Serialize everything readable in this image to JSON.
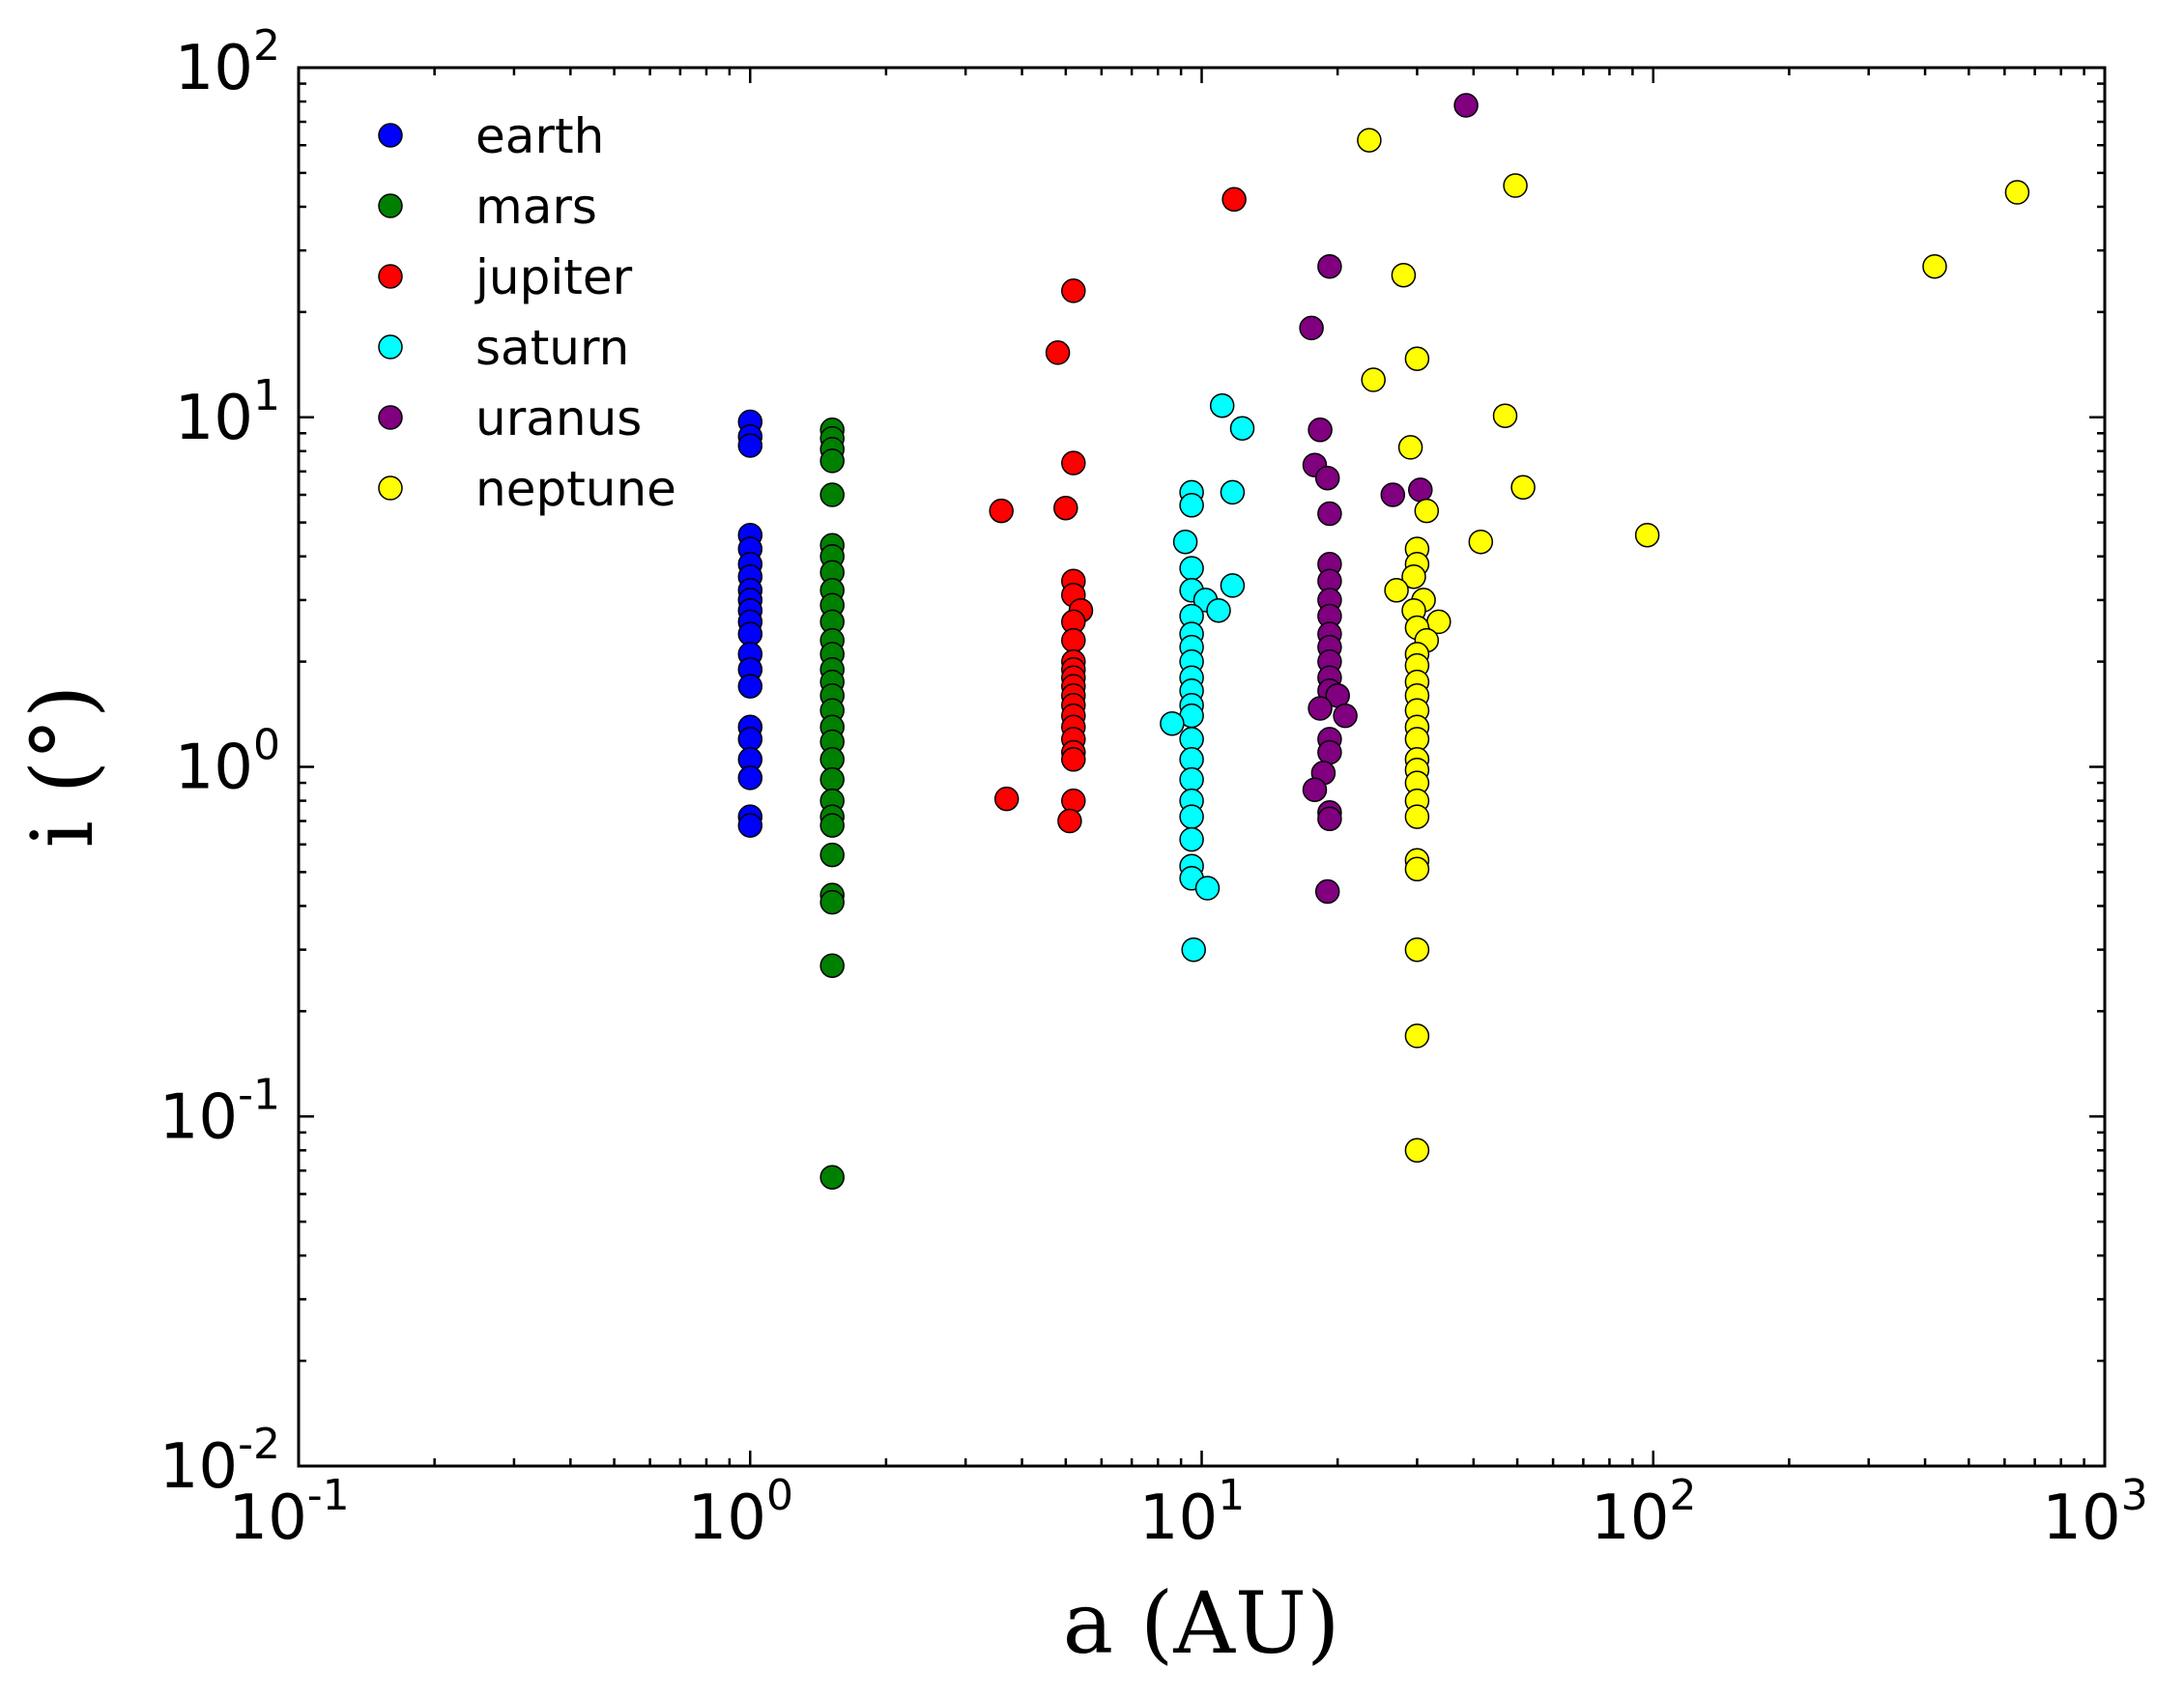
{
  "chart_data": {
    "type": "scatter",
    "title": "",
    "xlabel": "a (AU)",
    "ylabel": "i (°)",
    "xscale": "log",
    "yscale": "log",
    "xlim": [
      0.1,
      1000
    ],
    "ylim": [
      0.01,
      100
    ],
    "x_ticks": [
      {
        "base": "10",
        "exp": "-1",
        "value": 0.1
      },
      {
        "base": "10",
        "exp": "0",
        "value": 1
      },
      {
        "base": "10",
        "exp": "1",
        "value": 10
      },
      {
        "base": "10",
        "exp": "2",
        "value": 100
      },
      {
        "base": "10",
        "exp": "3",
        "value": 1000
      }
    ],
    "y_ticks": [
      {
        "base": "10",
        "exp": "-2",
        "value": 0.01
      },
      {
        "base": "10",
        "exp": "-1",
        "value": 0.1
      },
      {
        "base": "10",
        "exp": "0",
        "value": 1
      },
      {
        "base": "10",
        "exp": "1",
        "value": 10
      },
      {
        "base": "10",
        "exp": "2",
        "value": 100
      }
    ],
    "legend_position": "top-left",
    "series": [
      {
        "name": "earth",
        "color": "#0000ff",
        "points": [
          [
            1.0,
            9.7
          ],
          [
            1.0,
            8.8
          ],
          [
            1.0,
            8.3
          ],
          [
            1.0,
            4.6
          ],
          [
            1.0,
            4.2
          ],
          [
            1.0,
            3.8
          ],
          [
            1.0,
            3.5
          ],
          [
            1.0,
            3.2
          ],
          [
            1.0,
            3.0
          ],
          [
            1.0,
            2.8
          ],
          [
            1.0,
            2.6
          ],
          [
            1.0,
            2.4
          ],
          [
            1.0,
            2.1
          ],
          [
            1.0,
            1.9
          ],
          [
            1.0,
            1.7
          ],
          [
            1.0,
            1.3
          ],
          [
            1.0,
            1.2
          ],
          [
            1.0,
            1.05
          ],
          [
            1.0,
            0.93
          ],
          [
            1.0,
            0.72
          ],
          [
            1.0,
            0.68
          ]
        ]
      },
      {
        "name": "mars",
        "color": "#008000",
        "points": [
          [
            1.52,
            9.2
          ],
          [
            1.52,
            8.7
          ],
          [
            1.52,
            8.1
          ],
          [
            1.52,
            7.5
          ],
          [
            1.52,
            6.0
          ],
          [
            1.52,
            4.3
          ],
          [
            1.52,
            4.0
          ],
          [
            1.52,
            3.6
          ],
          [
            1.52,
            3.2
          ],
          [
            1.52,
            2.9
          ],
          [
            1.52,
            2.6
          ],
          [
            1.52,
            2.3
          ],
          [
            1.52,
            2.1
          ],
          [
            1.52,
            1.9
          ],
          [
            1.52,
            1.75
          ],
          [
            1.52,
            1.6
          ],
          [
            1.52,
            1.45
          ],
          [
            1.52,
            1.3
          ],
          [
            1.52,
            1.18
          ],
          [
            1.52,
            1.05
          ],
          [
            1.52,
            0.92
          ],
          [
            1.52,
            0.8
          ],
          [
            1.52,
            0.72
          ],
          [
            1.52,
            0.68
          ],
          [
            1.52,
            0.56
          ],
          [
            1.52,
            0.43
          ],
          [
            1.52,
            0.41
          ],
          [
            1.52,
            0.27
          ],
          [
            1.52,
            0.067
          ]
        ]
      },
      {
        "name": "jupiter",
        "color": "#ff0000",
        "points": [
          [
            11.8,
            42.0
          ],
          [
            5.2,
            23.0
          ],
          [
            4.8,
            15.3
          ],
          [
            5.2,
            7.4
          ],
          [
            3.6,
            5.4
          ],
          [
            5.0,
            5.5
          ],
          [
            5.2,
            3.4
          ],
          [
            5.2,
            3.1
          ],
          [
            5.4,
            2.8
          ],
          [
            5.2,
            2.6
          ],
          [
            5.2,
            2.3
          ],
          [
            5.2,
            2.0
          ],
          [
            5.2,
            1.9
          ],
          [
            5.2,
            1.8
          ],
          [
            5.2,
            1.7
          ],
          [
            5.2,
            1.6
          ],
          [
            5.2,
            1.5
          ],
          [
            5.2,
            1.4
          ],
          [
            5.2,
            1.3
          ],
          [
            5.2,
            1.2
          ],
          [
            5.2,
            1.1
          ],
          [
            5.2,
            1.05
          ],
          [
            3.7,
            0.81
          ],
          [
            5.2,
            0.8
          ],
          [
            5.1,
            0.7
          ]
        ]
      },
      {
        "name": "saturn",
        "color": "#00ffff",
        "points": [
          [
            11.1,
            10.8
          ],
          [
            12.3,
            9.3
          ],
          [
            9.5,
            6.1
          ],
          [
            11.7,
            6.1
          ],
          [
            9.5,
            5.6
          ],
          [
            9.2,
            4.4
          ],
          [
            9.5,
            3.7
          ],
          [
            11.7,
            3.3
          ],
          [
            9.5,
            3.2
          ],
          [
            10.2,
            3.0
          ],
          [
            10.9,
            2.8
          ],
          [
            9.5,
            2.7
          ],
          [
            9.5,
            2.4
          ],
          [
            9.5,
            2.2
          ],
          [
            9.5,
            2.0
          ],
          [
            9.5,
            1.8
          ],
          [
            9.5,
            1.65
          ],
          [
            9.5,
            1.5
          ],
          [
            9.5,
            1.4
          ],
          [
            8.6,
            1.33
          ],
          [
            9.5,
            1.2
          ],
          [
            9.5,
            1.05
          ],
          [
            9.5,
            0.92
          ],
          [
            9.5,
            0.8
          ],
          [
            9.5,
            0.72
          ],
          [
            9.5,
            0.62
          ],
          [
            9.5,
            0.52
          ],
          [
            9.5,
            0.48
          ],
          [
            10.3,
            0.45
          ],
          [
            9.6,
            0.3
          ]
        ]
      },
      {
        "name": "uranus",
        "color": "#800080",
        "points": [
          [
            38.5,
            78.0
          ],
          [
            19.2,
            27.0
          ],
          [
            17.5,
            18.0
          ],
          [
            18.3,
            9.2
          ],
          [
            17.8,
            7.3
          ],
          [
            19.0,
            6.7
          ],
          [
            30.5,
            6.2
          ],
          [
            26.5,
            6.0
          ],
          [
            19.2,
            5.3
          ],
          [
            19.2,
            3.8
          ],
          [
            19.2,
            3.4
          ],
          [
            19.2,
            3.0
          ],
          [
            19.2,
            2.7
          ],
          [
            19.2,
            2.4
          ],
          [
            19.2,
            2.2
          ],
          [
            19.2,
            2.0
          ],
          [
            19.2,
            1.8
          ],
          [
            19.2,
            1.65
          ],
          [
            20.0,
            1.6
          ],
          [
            18.3,
            1.47
          ],
          [
            20.8,
            1.4
          ],
          [
            19.2,
            1.2
          ],
          [
            19.2,
            1.1
          ],
          [
            18.6,
            0.96
          ],
          [
            17.8,
            0.86
          ],
          [
            19.2,
            0.74
          ],
          [
            19.2,
            0.71
          ],
          [
            19.0,
            0.44
          ]
        ]
      },
      {
        "name": "neptune",
        "color": "#ffff00",
        "points": [
          [
            23.5,
            62.0
          ],
          [
            49.5,
            46.0
          ],
          [
            640.0,
            44.0
          ],
          [
            420.0,
            27.0
          ],
          [
            28.0,
            25.5
          ],
          [
            30.0,
            14.7
          ],
          [
            24.0,
            12.8
          ],
          [
            47.0,
            10.1
          ],
          [
            29.0,
            8.2
          ],
          [
            51.5,
            6.3
          ],
          [
            31.5,
            5.4
          ],
          [
            97.0,
            4.6
          ],
          [
            41.5,
            4.4
          ],
          [
            30.0,
            4.2
          ],
          [
            30.0,
            3.8
          ],
          [
            29.5,
            3.5
          ],
          [
            27.0,
            3.2
          ],
          [
            31.0,
            3.0
          ],
          [
            29.5,
            2.8
          ],
          [
            33.5,
            2.6
          ],
          [
            30.0,
            2.5
          ],
          [
            31.5,
            2.3
          ],
          [
            30.0,
            2.1
          ],
          [
            30.0,
            1.95
          ],
          [
            30.0,
            1.75
          ],
          [
            30.0,
            1.6
          ],
          [
            30.0,
            1.45
          ],
          [
            30.0,
            1.3
          ],
          [
            30.0,
            1.2
          ],
          [
            30.0,
            1.05
          ],
          [
            30.0,
            0.98
          ],
          [
            30.0,
            0.9
          ],
          [
            30.0,
            0.8
          ],
          [
            30.0,
            0.72
          ],
          [
            30.0,
            0.54
          ],
          [
            30.0,
            0.51
          ],
          [
            30.0,
            0.3
          ],
          [
            30.0,
            0.17
          ],
          [
            30.0,
            0.08
          ]
        ]
      }
    ]
  }
}
